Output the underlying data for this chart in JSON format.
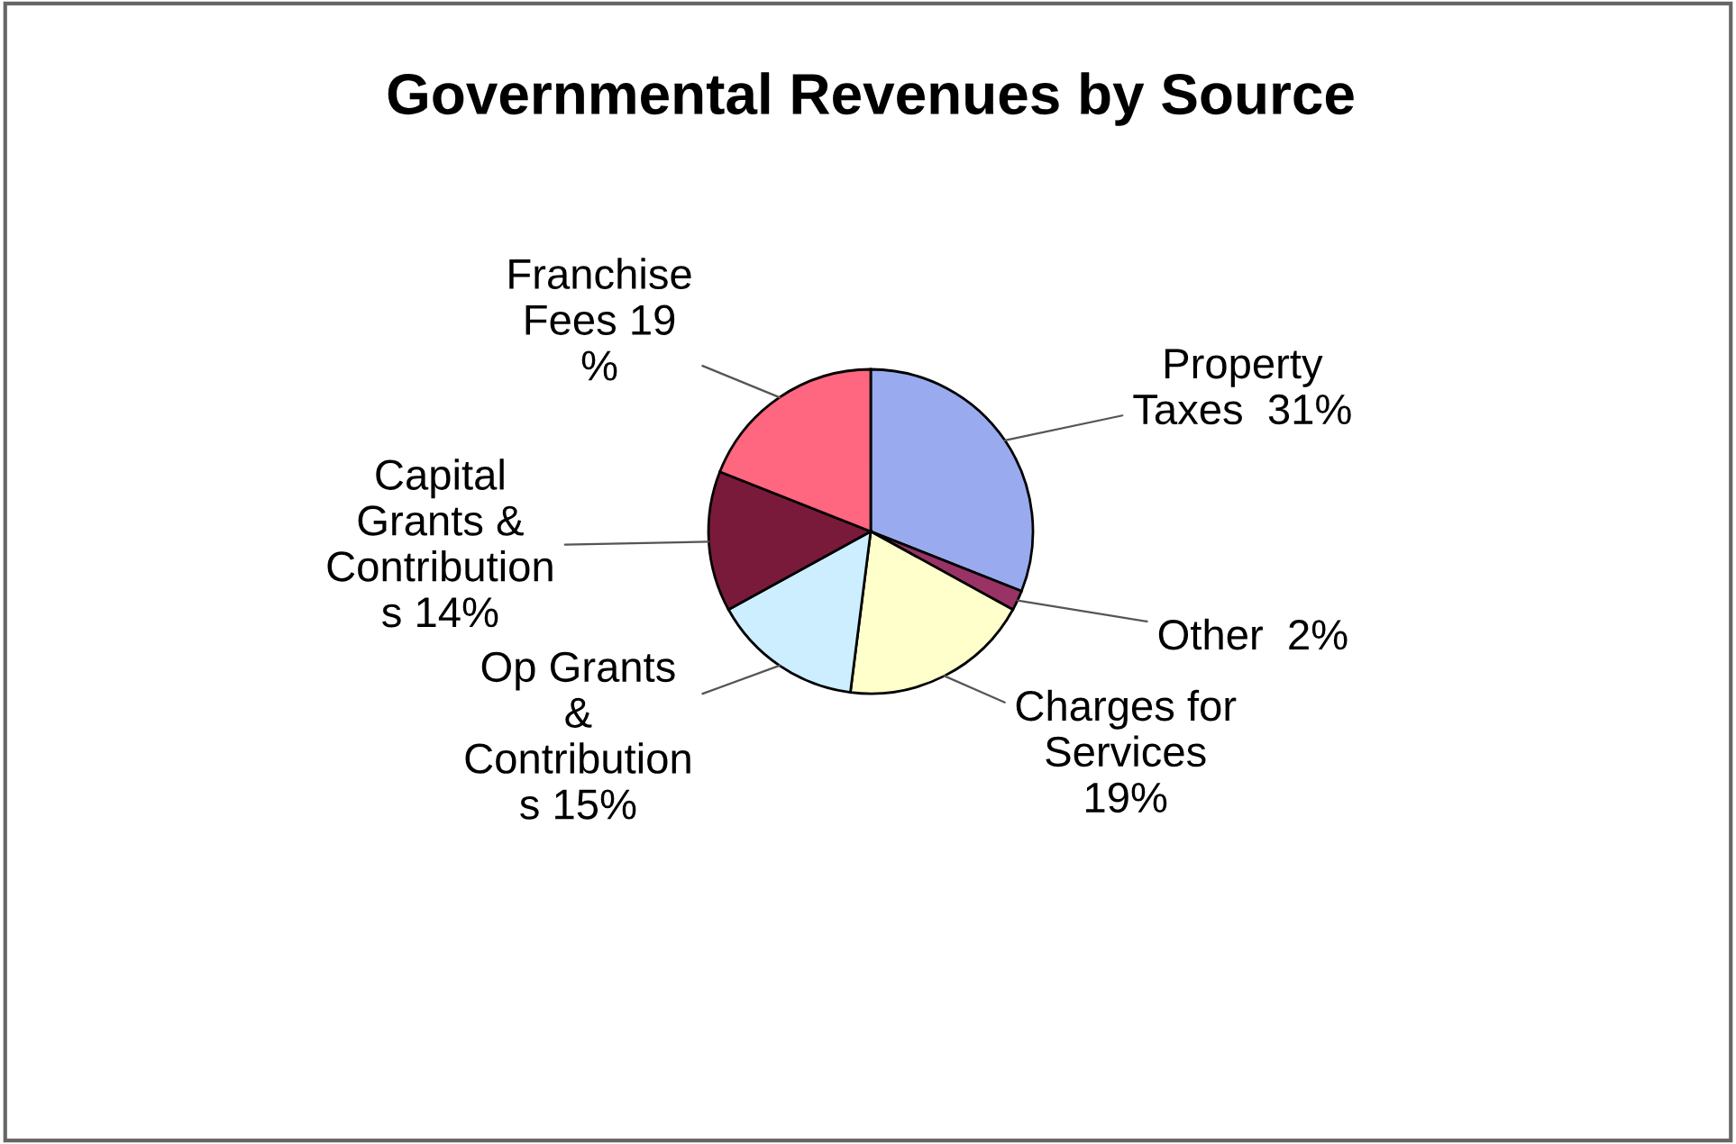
{
  "chart_data": {
    "type": "pie",
    "title": "Governmental Revenues by Source",
    "categories": [
      "Property\nTaxes  31%",
      "Other  2%",
      "Charges for\nServices\n19%",
      "Op Grants\n&\nContribution\ns 15%",
      "Capital\nGrants &\nContribution\ns 14%",
      "Franchise\nFees 19\n%"
    ],
    "values": [
      31,
      2,
      19,
      15,
      14,
      19
    ],
    "colors": [
      "#99aaee",
      "#993366",
      "#ffffcc",
      "#cceeff",
      "#7a1a3a",
      "#ff6680"
    ],
    "legend": false
  }
}
